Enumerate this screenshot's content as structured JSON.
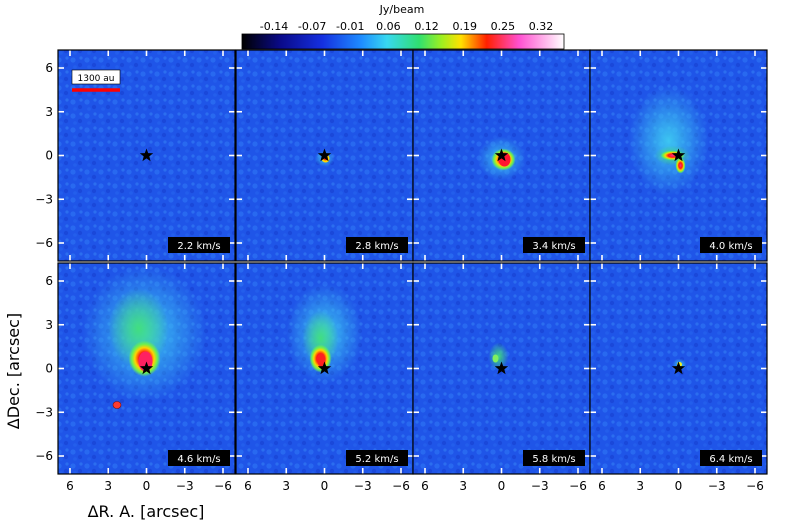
{
  "colorbar": {
    "unit_label": "Jy/beam",
    "ticks": [
      "-0.14",
      "-0.07",
      "-0.01",
      "0.06",
      "0.12",
      "0.19",
      "0.25",
      "0.32"
    ]
  },
  "axes": {
    "x_label": "ΔR. A. [arcsec]",
    "y_label": "ΔDec. [arcsec]",
    "x_ticks": [
      "6",
      "3",
      "0",
      "−3",
      "−6"
    ],
    "y_ticks": [
      "6",
      "3",
      "0",
      "−3",
      "−6"
    ]
  },
  "scale_bar": {
    "label": "1300 au",
    "color": "#ff0000"
  },
  "beam_color": "#ff3b2f",
  "panels": [
    {
      "velocity": "2.2 km/s"
    },
    {
      "velocity": "2.8 km/s"
    },
    {
      "velocity": "3.4 km/s"
    },
    {
      "velocity": "4.0 km/s"
    },
    {
      "velocity": "4.6 km/s"
    },
    {
      "velocity": "5.2 km/s"
    },
    {
      "velocity": "5.8 km/s"
    },
    {
      "velocity": "6.4 km/s"
    }
  ]
}
